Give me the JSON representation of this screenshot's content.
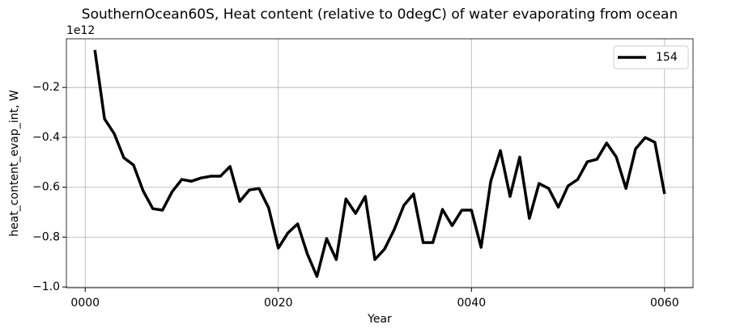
{
  "chart_data": {
    "type": "line",
    "title": "SouthernOcean60S, Heat content (relative to 0degC) of water evaporating from ocean",
    "x_label": "Year",
    "y_label": "heat_content_evap_int, W",
    "y_offset_label": "1e12",
    "x": [
      1,
      2,
      3,
      4,
      5,
      6,
      7,
      8,
      9,
      10,
      11,
      12,
      13,
      14,
      15,
      16,
      17,
      18,
      19,
      20,
      21,
      22,
      23,
      24,
      25,
      26,
      27,
      28,
      29,
      30,
      31,
      32,
      33,
      34,
      35,
      36,
      37,
      38,
      39,
      40,
      41,
      42,
      43,
      44,
      45,
      46,
      47,
      48,
      49,
      50,
      51,
      52,
      53,
      54,
      55,
      56,
      57,
      58,
      59,
      60
    ],
    "series": [
      {
        "name": "154",
        "color": "#000000",
        "values": [
          -0.05,
          -0.326,
          -0.385,
          -0.482,
          -0.511,
          -0.615,
          -0.686,
          -0.692,
          -0.618,
          -0.569,
          -0.576,
          -0.563,
          -0.556,
          -0.556,
          -0.517,
          -0.657,
          -0.611,
          -0.605,
          -0.683,
          -0.844,
          -0.783,
          -0.747,
          -0.867,
          -0.958,
          -0.806,
          -0.89,
          -0.647,
          -0.705,
          -0.637,
          -0.89,
          -0.848,
          -0.77,
          -0.673,
          -0.627,
          -0.822,
          -0.822,
          -0.689,
          -0.754,
          -0.692,
          -0.692,
          -0.841,
          -0.576,
          -0.453,
          -0.637,
          -0.479,
          -0.725,
          -0.585,
          -0.605,
          -0.68,
          -0.595,
          -0.569,
          -0.498,
          -0.488,
          -0.423,
          -0.479,
          -0.605,
          -0.446,
          -0.401,
          -0.42,
          -0.627
        ]
      }
    ],
    "xlim": [
      -1.95,
      62.95
    ],
    "ylim": [
      -1.003,
      -0.005
    ],
    "xticks": [
      {
        "value": 0,
        "label": "0000"
      },
      {
        "value": 20,
        "label": "0020"
      },
      {
        "value": 40,
        "label": "0040"
      },
      {
        "value": 60,
        "label": "0060"
      }
    ],
    "yticks": [
      {
        "value": -1.0,
        "label": "−1.0"
      },
      {
        "value": -0.8,
        "label": "−0.8"
      },
      {
        "value": -0.6,
        "label": "−0.6"
      },
      {
        "value": -0.4,
        "label": "−0.4"
      },
      {
        "value": -0.2,
        "label": "−0.2"
      }
    ],
    "grid": true,
    "legend": "upper-right"
  }
}
